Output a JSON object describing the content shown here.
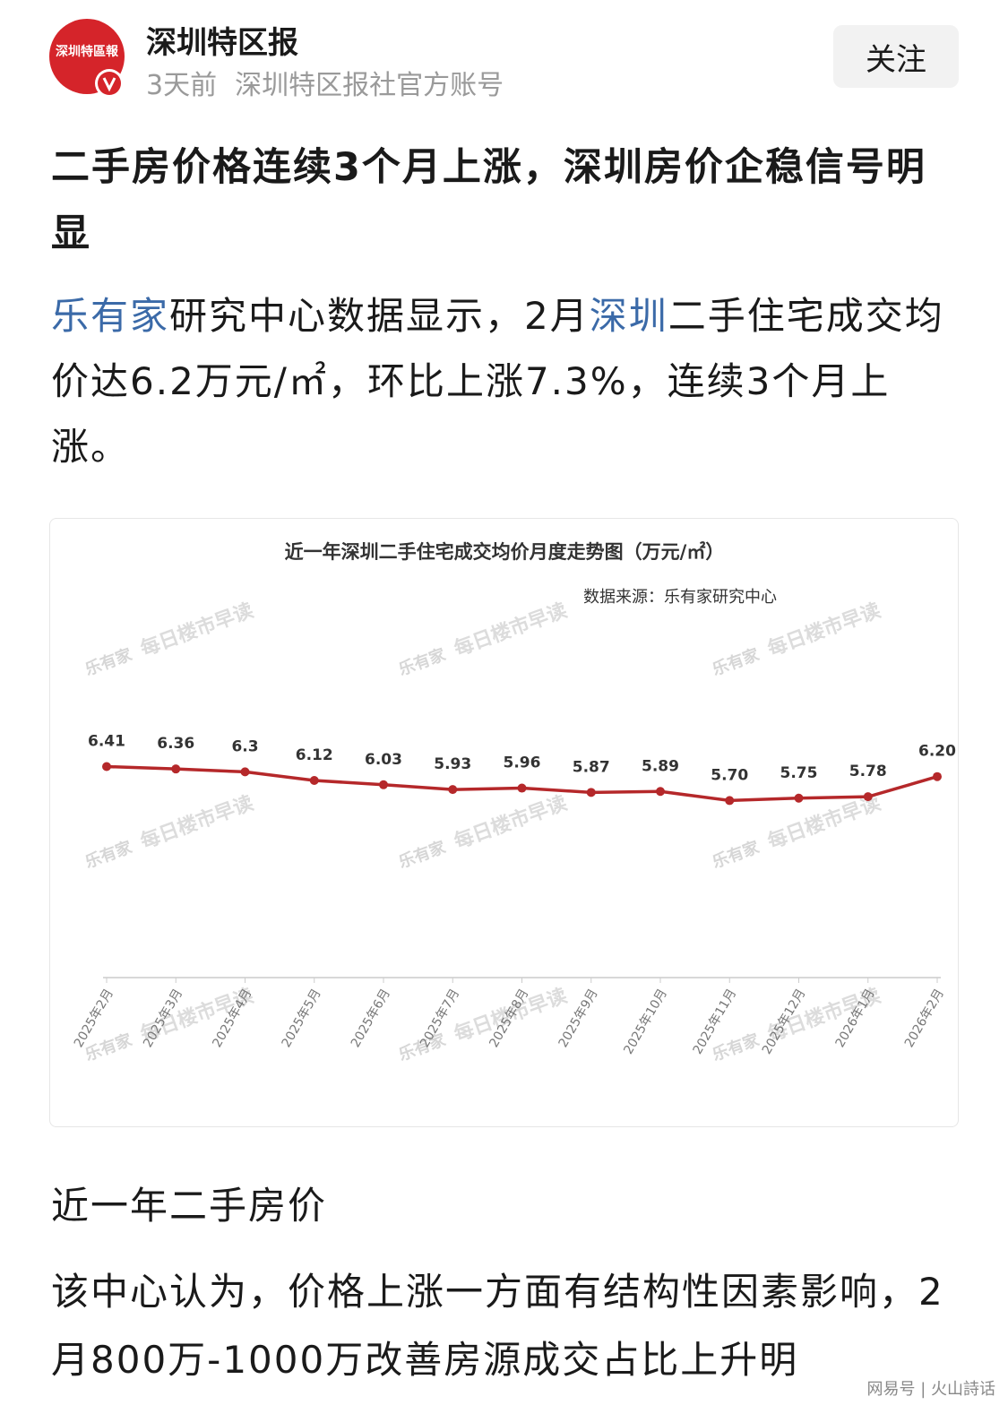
{
  "header": {
    "logo": "深圳特區報",
    "account": "深圳特区报",
    "time": "3天前",
    "description": "深圳特区报社官方账号",
    "follow": "关注"
  },
  "article": {
    "title": "二手房价格连续3个月上涨，深圳房价企稳信号明显",
    "paragraph1": [
      {
        "text": "乐有家",
        "link": true
      },
      {
        "text": "研究中心数据显示，2月",
        "link": false
      },
      {
        "text": "深圳",
        "link": true
      },
      {
        "text": "二手住宅成交均价达6.2万元/㎡，环比上涨7.3%，连续3个月上涨。",
        "link": false
      }
    ],
    "caption": "近一年二手房价",
    "paragraph2": "该中心认为，价格上涨一方面有结构性因素影响，2月800万-1000万改善房源成交占比上升明"
  },
  "chart_data": {
    "type": "line",
    "title": "近一年深圳二手住宅成交均价月度走势图（万元/㎡）",
    "source": "数据来源：乐有家研究中心",
    "watermark": {
      "brand": "乐有家",
      "text": "每日楼市早读"
    },
    "categories": [
      "2025年2月",
      "2025年3月",
      "2025年4月",
      "2025年5月",
      "2025年6月",
      "2025年7月",
      "2025年8月",
      "2025年9月",
      "2025年10月",
      "2025年11月",
      "2025年12月",
      "2026年1月",
      "2026年2月"
    ],
    "values": [
      6.41,
      6.36,
      6.3,
      6.12,
      6.03,
      5.93,
      5.96,
      5.87,
      5.89,
      5.7,
      5.75,
      5.78,
      6.2
    ],
    "value_labels": [
      "6.41",
      "6.36",
      "6.3",
      "6.12",
      "6.03",
      "5.93",
      "5.96",
      "5.87",
      "5.89",
      "5.70",
      "5.75",
      "5.78",
      "6.20"
    ],
    "color": "#b5282a",
    "ylim": [
      2,
      7
    ]
  },
  "footer": "网易号 | 火山詩话"
}
